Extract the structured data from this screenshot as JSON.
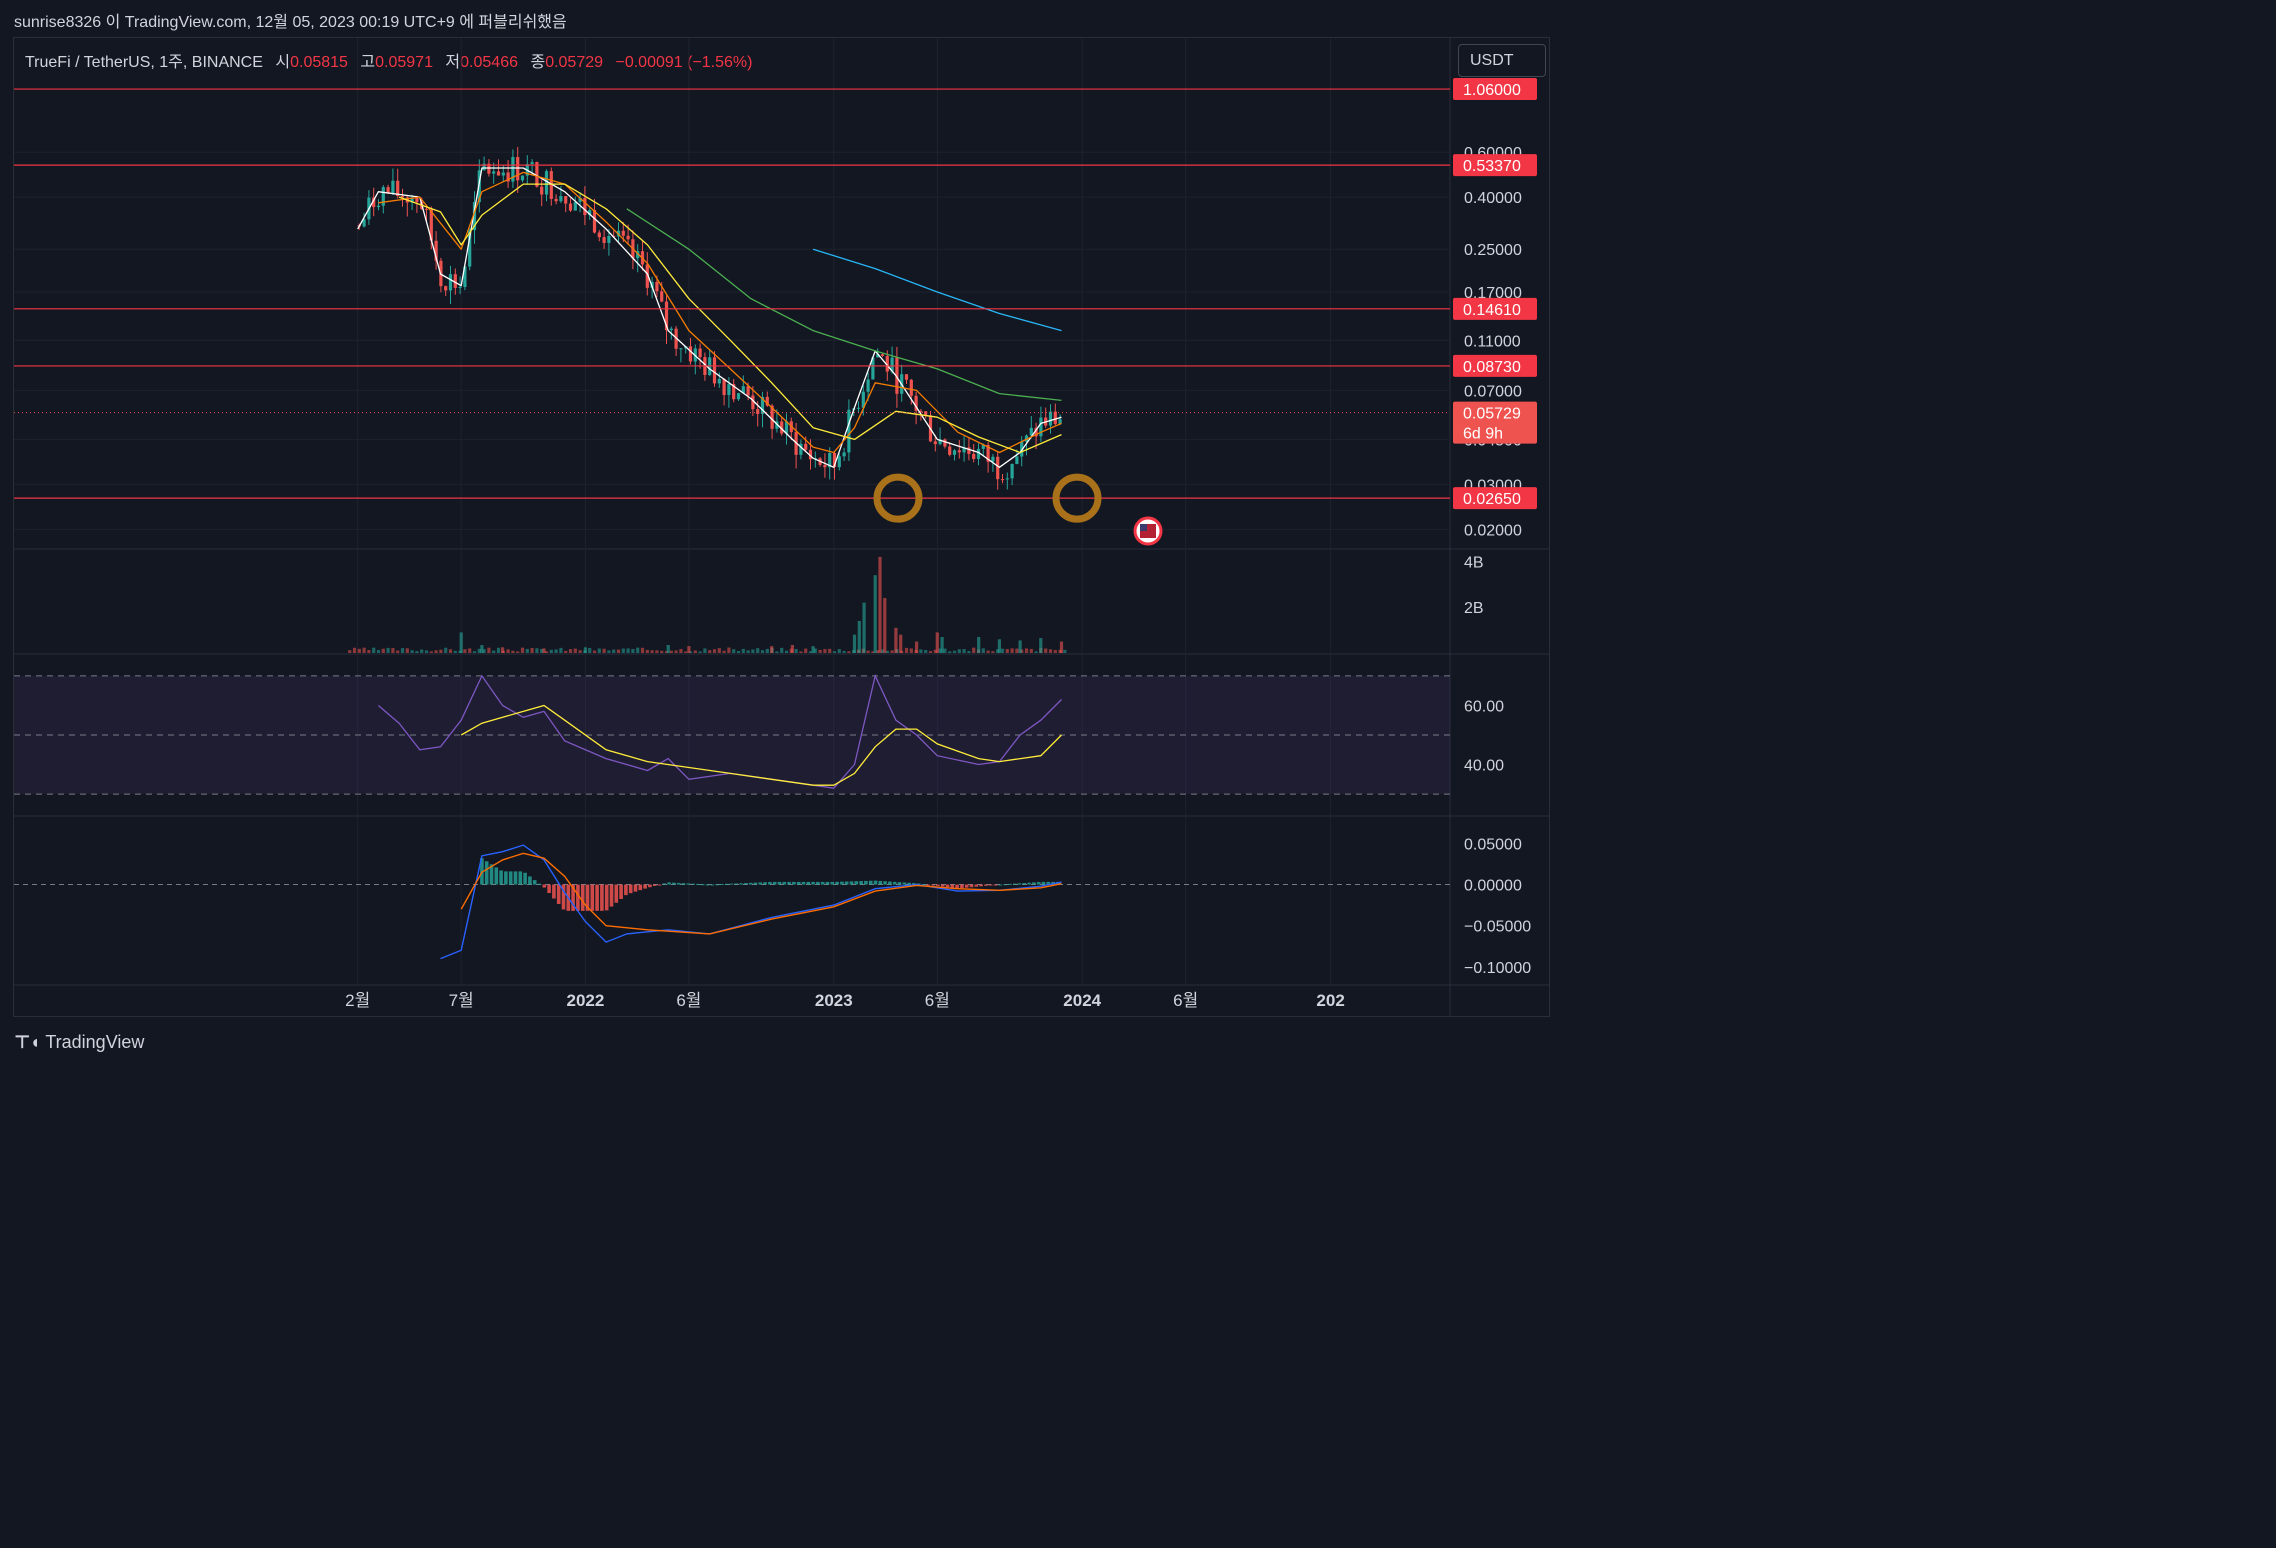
{
  "header": {
    "text": "sunrise8326 이 TradingView.com, 12월 05, 2023 00:19 UTC+9 에 퍼블리쉬했음"
  },
  "legend": {
    "symbol": "TrueFi / TetherUS, 1주, BINANCE",
    "open_label": "시",
    "open": "0.05815",
    "high_label": "고",
    "high": "0.05971",
    "low_label": "저",
    "low": "0.05466",
    "close_label": "종",
    "close": "0.05729",
    "change": "−0.00091 (−1.56%)"
  },
  "currency_button": "USDT",
  "brand": {
    "name": "TradingView"
  },
  "colors": {
    "background": "#131722",
    "up": "#26a69a",
    "down": "#ef5350",
    "level_line": "#f23645",
    "ma_fast": "#ffffff",
    "ma_mid": "#f57c00",
    "ma_slow": "#ffeb3b",
    "ma_200": "#4caf50",
    "ma_long": "#29b6f6",
    "rsi": "#7e57c2",
    "rsi_ma": "#ffeb3b",
    "macd": "#2962ff",
    "signal": "#ff6d00"
  },
  "chart_data": [
    {
      "type": "candlestick",
      "title": "TrueFi / TetherUS, 1주, BINANCE",
      "y_scale": "log",
      "ylim": [
        0.0185,
        1.07
      ],
      "y_ticks": [
        "0.60000",
        "0.40000",
        "0.25000",
        "0.17000",
        "0.11000",
        "0.07000",
        "0.04500",
        "0.03000",
        "0.02000"
      ],
      "x_ticks": [
        "2월",
        "7월",
        "2022",
        "6월",
        "2023",
        "6월",
        "2024",
        "6월",
        "202"
      ],
      "horizontal_levels": [
        "1.06000",
        "0.53370",
        "0.14610",
        "0.08730",
        "0.02650"
      ],
      "last_price": {
        "value": "0.05729",
        "countdown": "6d 9h"
      },
      "annotations": [
        "circle at first bottom near 2023-01",
        "circle at second bottom near 2023-09",
        "US flag event marker near 2023-12"
      ],
      "series": [
        {
          "name": "MA fast",
          "points": [
            [
              "2021-02",
              0.3
            ],
            [
              "2021-03",
              0.42
            ],
            [
              "2021-05",
              0.4
            ],
            [
              "2021-06",
              0.2
            ],
            [
              "2021-07",
              0.18
            ],
            [
              "2021-08",
              0.52
            ],
            [
              "2021-10",
              0.52
            ],
            [
              "2021-12",
              0.42
            ],
            [
              "2022-02",
              0.3
            ],
            [
              "2022-04",
              0.2
            ],
            [
              "2022-05",
              0.12
            ],
            [
              "2022-07",
              0.085
            ],
            [
              "2022-09",
              0.065
            ],
            [
              "2022-11",
              0.045
            ],
            [
              "2022-12",
              0.038
            ],
            [
              "2023-01",
              0.035
            ],
            [
              "2023-02",
              0.06
            ],
            [
              "2023-03",
              0.1
            ],
            [
              "2023-04",
              0.08
            ],
            [
              "2023-06",
              0.045
            ],
            [
              "2023-08",
              0.04
            ],
            [
              "2023-09",
              0.035
            ],
            [
              "2023-10",
              0.04
            ],
            [
              "2023-11",
              0.052
            ],
            [
              "2023-12",
              0.055
            ]
          ]
        },
        {
          "name": "MA mid",
          "points": [
            [
              "2021-03",
              0.38
            ],
            [
              "2021-05",
              0.4
            ],
            [
              "2021-07",
              0.25
            ],
            [
              "2021-08",
              0.42
            ],
            [
              "2021-10",
              0.5
            ],
            [
              "2021-12",
              0.45
            ],
            [
              "2022-02",
              0.32
            ],
            [
              "2022-04",
              0.22
            ],
            [
              "2022-06",
              0.12
            ],
            [
              "2022-08",
              0.085
            ],
            [
              "2022-10",
              0.06
            ],
            [
              "2022-12",
              0.042
            ],
            [
              "2023-01",
              0.04
            ],
            [
              "2023-02",
              0.05
            ],
            [
              "2023-03",
              0.075
            ],
            [
              "2023-05",
              0.07
            ],
            [
              "2023-07",
              0.048
            ],
            [
              "2023-09",
              0.04
            ],
            [
              "2023-11",
              0.048
            ],
            [
              "2023-12",
              0.052
            ]
          ]
        },
        {
          "name": "MA slow",
          "points": [
            [
              "2021-04",
              0.4
            ],
            [
              "2021-06",
              0.35
            ],
            [
              "2021-07",
              0.26
            ],
            [
              "2021-08",
              0.34
            ],
            [
              "2021-10",
              0.45
            ],
            [
              "2021-12",
              0.45
            ],
            [
              "2022-02",
              0.36
            ],
            [
              "2022-04",
              0.26
            ],
            [
              "2022-06",
              0.16
            ],
            [
              "2022-08",
              0.11
            ],
            [
              "2022-10",
              0.075
            ],
            [
              "2022-12",
              0.05
            ],
            [
              "2023-02",
              0.045
            ],
            [
              "2023-04",
              0.058
            ],
            [
              "2023-06",
              0.055
            ],
            [
              "2023-08",
              0.046
            ],
            [
              "2023-10",
              0.04
            ],
            [
              "2023-12",
              0.047
            ]
          ]
        },
        {
          "name": "MA 200",
          "points": [
            [
              "2022-03",
              0.36
            ],
            [
              "2022-06",
              0.25
            ],
            [
              "2022-09",
              0.16
            ],
            [
              "2022-12",
              0.12
            ],
            [
              "2023-03",
              0.1
            ],
            [
              "2023-06",
              0.085
            ],
            [
              "2023-09",
              0.068
            ],
            [
              "2023-12",
              0.064
            ]
          ]
        },
        {
          "name": "MA long",
          "points": [
            [
              "2022-12",
              0.25
            ],
            [
              "2023-03",
              0.21
            ],
            [
              "2023-06",
              0.17
            ],
            [
              "2023-09",
              0.14
            ],
            [
              "2023-12",
              0.12
            ]
          ]
        }
      ]
    },
    {
      "type": "bar",
      "title": "Volume",
      "y_ticks": [
        "4B",
        "2B"
      ],
      "ylim": [
        0,
        4.5
      ],
      "values_B": [
        [
          "2021-07",
          0.9,
          "up"
        ],
        [
          "2021-08",
          0.35,
          "up"
        ],
        [
          "2021-09",
          0.25,
          "down"
        ],
        [
          "2021-11",
          0.2,
          "down"
        ],
        [
          "2022-01",
          0.25,
          "up"
        ],
        [
          "2022-05",
          0.35,
          "up"
        ],
        [
          "2022-06",
          0.3,
          "down"
        ],
        [
          "2022-10",
          0.3,
          "down"
        ],
        [
          "2022-11",
          0.35,
          "down"
        ],
        [
          "2022-12",
          0.3,
          "up"
        ],
        [
          "2023-02",
          0.8,
          "up"
        ],
        [
          "2023-02",
          1.4,
          "up"
        ],
        [
          "2023-02",
          2.2,
          "up"
        ],
        [
          "2023-03",
          3.4,
          "up"
        ],
        [
          "2023-03",
          4.2,
          "down"
        ],
        [
          "2023-03",
          2.4,
          "down"
        ],
        [
          "2023-04",
          1.1,
          "down"
        ],
        [
          "2023-04",
          0.8,
          "down"
        ],
        [
          "2023-05",
          0.5,
          "down"
        ],
        [
          "2023-06",
          0.9,
          "down"
        ],
        [
          "2023-06",
          0.7,
          "up"
        ],
        [
          "2023-08",
          0.7,
          "up"
        ],
        [
          "2023-09",
          0.6,
          "up"
        ],
        [
          "2023-10",
          0.55,
          "up"
        ],
        [
          "2023-11",
          0.65,
          "up"
        ],
        [
          "2023-12",
          0.5,
          "down"
        ]
      ]
    },
    {
      "type": "line",
      "title": "RSI",
      "y_ticks": [
        "60.00",
        "40.00"
      ],
      "ylim": [
        28,
        72
      ],
      "band": [
        30,
        70
      ],
      "series": [
        {
          "name": "RSI",
          "points": [
            [
              "2021-03",
              60
            ],
            [
              "2021-04",
              54
            ],
            [
              "2021-05",
              45
            ],
            [
              "2021-06",
              46
            ],
            [
              "2021-07",
              55
            ],
            [
              "2021-08",
              70
            ],
            [
              "2021-09",
              60
            ],
            [
              "2021-10",
              56
            ],
            [
              "2021-11",
              58
            ],
            [
              "2021-12",
              48
            ],
            [
              "2022-02",
              42
            ],
            [
              "2022-04",
              38
            ],
            [
              "2022-05",
              42
            ],
            [
              "2022-06",
              35
            ],
            [
              "2022-08",
              37
            ],
            [
              "2022-10",
              35
            ],
            [
              "2022-12",
              33
            ],
            [
              "2023-01",
              32
            ],
            [
              "2023-02",
              40
            ],
            [
              "2023-03",
              70
            ],
            [
              "2023-04",
              55
            ],
            [
              "2023-05",
              50
            ],
            [
              "2023-06",
              43
            ],
            [
              "2023-08",
              40
            ],
            [
              "2023-09",
              41
            ],
            [
              "2023-10",
              50
            ],
            [
              "2023-11",
              55
            ],
            [
              "2023-12",
              62
            ]
          ]
        },
        {
          "name": "RSI MA",
          "points": [
            [
              "2021-07",
              50
            ],
            [
              "2021-08",
              54
            ],
            [
              "2021-10",
              58
            ],
            [
              "2021-11",
              60
            ],
            [
              "2021-12",
              55
            ],
            [
              "2022-02",
              45
            ],
            [
              "2022-04",
              41
            ],
            [
              "2022-06",
              39
            ],
            [
              "2022-08",
              37
            ],
            [
              "2022-10",
              35
            ],
            [
              "2022-12",
              33
            ],
            [
              "2023-01",
              33
            ],
            [
              "2023-02",
              37
            ],
            [
              "2023-03",
              46
            ],
            [
              "2023-04",
              52
            ],
            [
              "2023-05",
              52
            ],
            [
              "2023-06",
              47
            ],
            [
              "2023-08",
              42
            ],
            [
              "2023-09",
              41
            ],
            [
              "2023-11",
              43
            ],
            [
              "2023-12",
              50
            ]
          ]
        }
      ]
    },
    {
      "type": "line",
      "title": "MACD",
      "y_ticks": [
        "0.05000",
        "0.00000",
        "−0.05000",
        "−0.10000"
      ],
      "ylim": [
        -0.11,
        0.07
      ],
      "series": [
        {
          "name": "MACD",
          "points": [
            [
              "2021-06",
              -0.09
            ],
            [
              "2021-07",
              -0.08
            ],
            [
              "2021-08",
              0.035
            ],
            [
              "2021-09",
              0.04
            ],
            [
              "2021-10",
              0.048
            ],
            [
              "2021-11",
              0.03
            ],
            [
              "2021-12",
              -0.01
            ],
            [
              "2022-01",
              -0.045
            ],
            [
              "2022-02",
              -0.07
            ],
            [
              "2022-03",
              -0.06
            ],
            [
              "2022-05",
              -0.055
            ],
            [
              "2022-07",
              -0.06
            ],
            [
              "2022-10",
              -0.04
            ],
            [
              "2023-01",
              -0.025
            ],
            [
              "2023-03",
              -0.005
            ],
            [
              "2023-05",
              0.0
            ],
            [
              "2023-07",
              -0.008
            ],
            [
              "2023-09",
              -0.007
            ],
            [
              "2023-11",
              -0.002
            ],
            [
              "2023-12",
              0.003
            ]
          ]
        },
        {
          "name": "Signal",
          "points": [
            [
              "2021-07",
              -0.03
            ],
            [
              "2021-08",
              0.015
            ],
            [
              "2021-09",
              0.03
            ],
            [
              "2021-10",
              0.038
            ],
            [
              "2021-11",
              0.032
            ],
            [
              "2021-12",
              0.01
            ],
            [
              "2022-01",
              -0.025
            ],
            [
              "2022-02",
              -0.05
            ],
            [
              "2022-04",
              -0.055
            ],
            [
              "2022-07",
              -0.06
            ],
            [
              "2022-10",
              -0.042
            ],
            [
              "2023-01",
              -0.027
            ],
            [
              "2023-03",
              -0.008
            ],
            [
              "2023-05",
              -0.001
            ],
            [
              "2023-07",
              -0.005
            ],
            [
              "2023-09",
              -0.007
            ],
            [
              "2023-11",
              -0.004
            ],
            [
              "2023-12",
              0.001
            ]
          ]
        }
      ]
    }
  ]
}
